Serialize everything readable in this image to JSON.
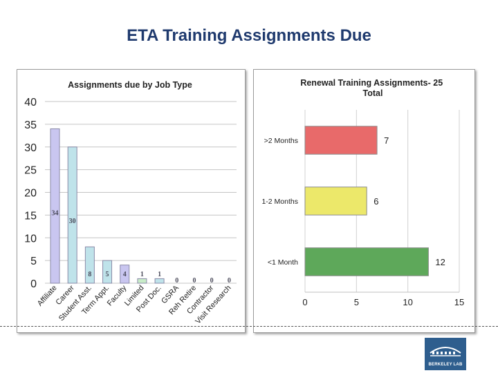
{
  "slide": {
    "title": "ETA Training Assignments Due",
    "logo_text": "BERKELEY LAB"
  },
  "chart_data": [
    {
      "type": "bar",
      "title": "Assignments due by Job Type",
      "categories": [
        "Affiliate",
        "Career",
        "Student Asst.",
        "Term Appt.",
        "Faculty",
        "Limited",
        "Post Doc.",
        "GSRA",
        "Reh Retire",
        "Contractor",
        "Visit Research"
      ],
      "values": [
        34,
        30,
        8,
        5,
        4,
        1,
        1,
        0,
        0,
        0,
        0
      ],
      "colors": [
        "#c9c6f0",
        "#bfe3ea",
        "#bfe3ea",
        "#bfe3ea",
        "#c9c6f0",
        "#c8ecc8",
        "#bfe3ea",
        "#c9c6f0",
        "#bfe3ea",
        "#bfe3ea",
        "#c9c6f0"
      ],
      "ylim": [
        0,
        40
      ],
      "yticks": [
        0,
        5,
        10,
        15,
        20,
        25,
        30,
        35,
        40
      ],
      "grid": true,
      "xlabel": "",
      "ylabel": ""
    },
    {
      "type": "bar",
      "orientation": "horizontal",
      "title": "Renewal Training Assignments- 25 Total",
      "categories": [
        ">2 Months",
        "1-2 Months",
        "<1 Month"
      ],
      "values": [
        7,
        6,
        12
      ],
      "colors": [
        "#e86a6a",
        "#ece86a",
        "#5ea85a"
      ],
      "xlim": [
        0,
        15
      ],
      "xticks": [
        0,
        5,
        10,
        15
      ],
      "grid": true,
      "xlabel": "",
      "ylabel": ""
    }
  ]
}
